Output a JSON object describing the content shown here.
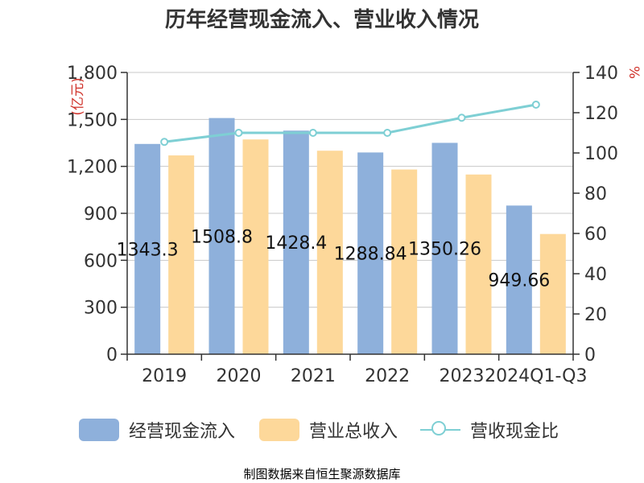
{
  "title": "历年经营现金流入、营业收入情况",
  "source": "制图数据来自恒生聚源数据库",
  "colors": {
    "cash_inflow": "#8eb0db",
    "revenue": "#fdd89a",
    "ratio_line": "#7ecfd4",
    "axis": "#333333",
    "grid": "#c8c8c8",
    "unit_red": "#d0342c",
    "source_gold": "#c8a13c"
  },
  "legend": [
    {
      "label": "经营现金流入",
      "type": "bar",
      "color": "#8eb0db"
    },
    {
      "label": "营业总收入",
      "type": "bar",
      "color": "#fdd89a"
    },
    {
      "label": "营收现金比",
      "type": "line",
      "color": "#7ecfd4"
    }
  ],
  "chart_data": {
    "type": "bar",
    "title": "历年经营现金流入、营业收入情况",
    "categories": [
      "2019",
      "2020",
      "2021",
      "2022",
      "2023",
      "2024Q1-Q3"
    ],
    "y_left": {
      "unit": "(亿元)",
      "ticks": [
        "0",
        "300",
        "600",
        "900",
        "1,200",
        "1,500",
        "1,800"
      ],
      "min": 0,
      "max": 1800
    },
    "y_right": {
      "unit": "%",
      "ticks": [
        "0",
        "20",
        "40",
        "60",
        "80",
        "100",
        "120",
        "140"
      ],
      "min": 0,
      "max": 140
    },
    "series": [
      {
        "name": "经营现金流入",
        "type": "bar",
        "axis": "left",
        "values": [
          1343.3,
          1508.8,
          1428.4,
          1288.84,
          1350.26,
          949.66
        ],
        "labels": [
          "1343.3",
          "1508.8",
          "1428.4",
          "1288.84",
          "1350.26",
          "949.66"
        ]
      },
      {
        "name": "营业总收入",
        "type": "bar",
        "axis": "left",
        "values": [
          1270,
          1372,
          1300,
          1180,
          1148,
          768
        ]
      },
      {
        "name": "营收现金比",
        "type": "line",
        "axis": "right",
        "values": [
          105.5,
          110,
          110,
          110,
          117.5,
          124
        ]
      }
    ],
    "grid": true,
    "legend_position": "bottom"
  }
}
